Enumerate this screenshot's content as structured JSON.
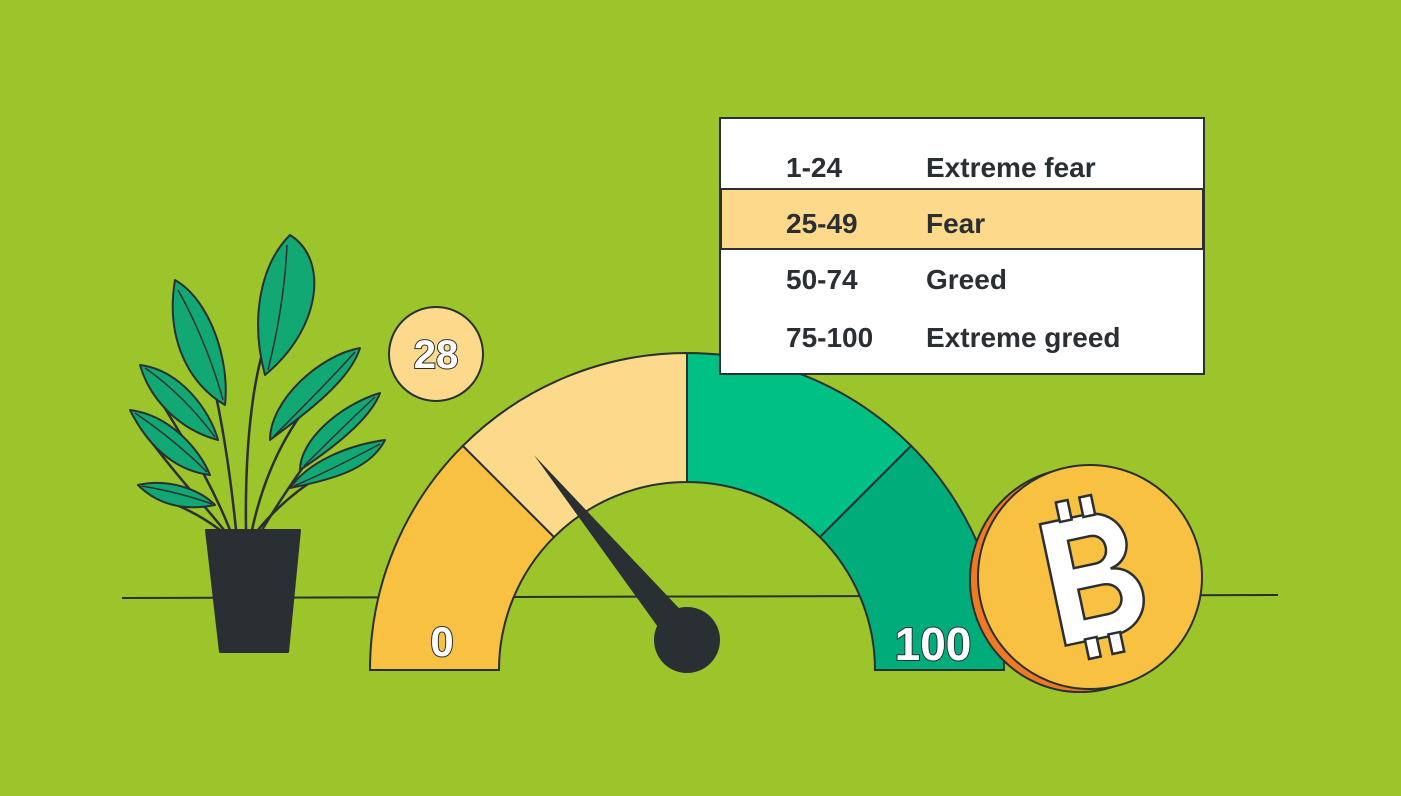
{
  "colors": {
    "background": "#9bc52a",
    "outline": "#2a2f33",
    "extreme_fear": "#f9c142",
    "fear": "#fdd98b",
    "greed": "#00c084",
    "extreme_greed": "#00ad7a",
    "coin": "#f9c142",
    "coin_edge": "#ef7a24",
    "leaf": "#12a874",
    "pot": "#2a2f33"
  },
  "gauge": {
    "value": 28,
    "value_label": "28",
    "min_label": "0",
    "max_label": "100",
    "min": 0,
    "max": 100
  },
  "legend": {
    "rows": [
      {
        "range": "1-24",
        "label": "Extreme fear",
        "highlighted": false
      },
      {
        "range": "25-49",
        "label": "Fear",
        "highlighted": true
      },
      {
        "range": "50-74",
        "label": "Greed",
        "highlighted": false
      },
      {
        "range": "75-100",
        "label": "Extreme greed",
        "highlighted": false
      }
    ]
  },
  "icons": {
    "plant": "plant-icon",
    "coin": "bitcoin-icon"
  }
}
